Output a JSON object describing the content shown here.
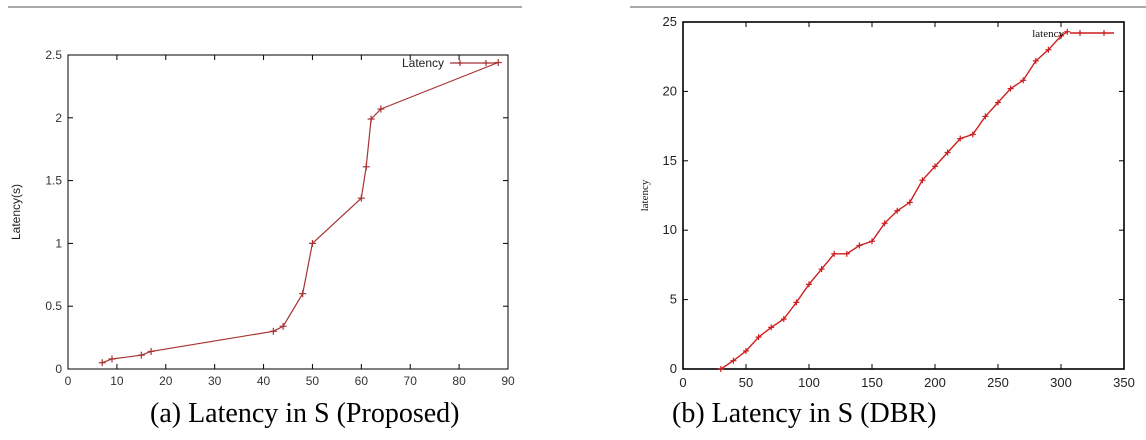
{
  "chart_data": [
    {
      "type": "line",
      "title": "",
      "xlabel": "",
      "ylabel": "Latency(s)",
      "xlim": [
        0,
        90
      ],
      "ylim": [
        0,
        2.5
      ],
      "x_ticks": [
        "0",
        "10",
        "20",
        "30",
        "40",
        "50",
        "60",
        "70",
        "80",
        "90"
      ],
      "y_ticks": [
        "0",
        "0.5",
        "1",
        "1.5",
        "2",
        "2.5"
      ],
      "legend_position": "top-right",
      "grid": false,
      "series": [
        {
          "name": "Latency",
          "color": "#a83232",
          "points": [
            [
              7,
              0.05
            ],
            [
              9,
              0.08
            ],
            [
              15,
              0.11
            ],
            [
              17,
              0.14
            ],
            [
              42,
              0.3
            ],
            [
              44,
              0.34
            ],
            [
              48,
              0.6
            ],
            [
              50,
              1.0
            ],
            [
              60,
              1.36
            ],
            [
              61,
              1.61
            ],
            [
              62,
              1.99
            ],
            [
              64,
              2.07
            ],
            [
              88,
              2.44
            ]
          ]
        }
      ],
      "caption": "(a)  Latency in S (Proposed)"
    },
    {
      "type": "line",
      "title": "",
      "xlabel": "",
      "ylabel": "latency",
      "xlim": [
        0,
        350
      ],
      "ylim": [
        0,
        25
      ],
      "x_ticks": [
        "0",
        "50",
        "100",
        "150",
        "200",
        "250",
        "300",
        "350"
      ],
      "y_ticks": [
        "0",
        "5",
        "10",
        "15",
        "20",
        "25"
      ],
      "legend_position": "top-right",
      "grid": false,
      "series": [
        {
          "name": "latency",
          "color": "#cc1f1f",
          "points": [
            [
              30,
              0
            ],
            [
              40,
              0.6
            ],
            [
              50,
              1.3
            ],
            [
              60,
              2.3
            ],
            [
              70,
              3.0
            ],
            [
              80,
              3.6
            ],
            [
              90,
              4.8
            ],
            [
              100,
              6.1
            ],
            [
              110,
              7.2
            ],
            [
              120,
              8.3
            ],
            [
              130,
              8.3
            ],
            [
              140,
              8.9
            ],
            [
              150,
              9.2
            ],
            [
              160,
              10.5
            ],
            [
              170,
              11.4
            ],
            [
              180,
              12.0
            ],
            [
              190,
              13.6
            ],
            [
              200,
              14.6
            ],
            [
              210,
              15.6
            ],
            [
              220,
              16.6
            ],
            [
              230,
              16.9
            ],
            [
              240,
              18.2
            ],
            [
              250,
              19.2
            ],
            [
              260,
              20.2
            ],
            [
              270,
              20.8
            ],
            [
              280,
              22.2
            ],
            [
              290,
              23.0
            ],
            [
              300,
              24.0
            ],
            [
              305,
              24.3
            ]
          ]
        }
      ],
      "caption": "(b) Latency in S (DBR)"
    }
  ]
}
